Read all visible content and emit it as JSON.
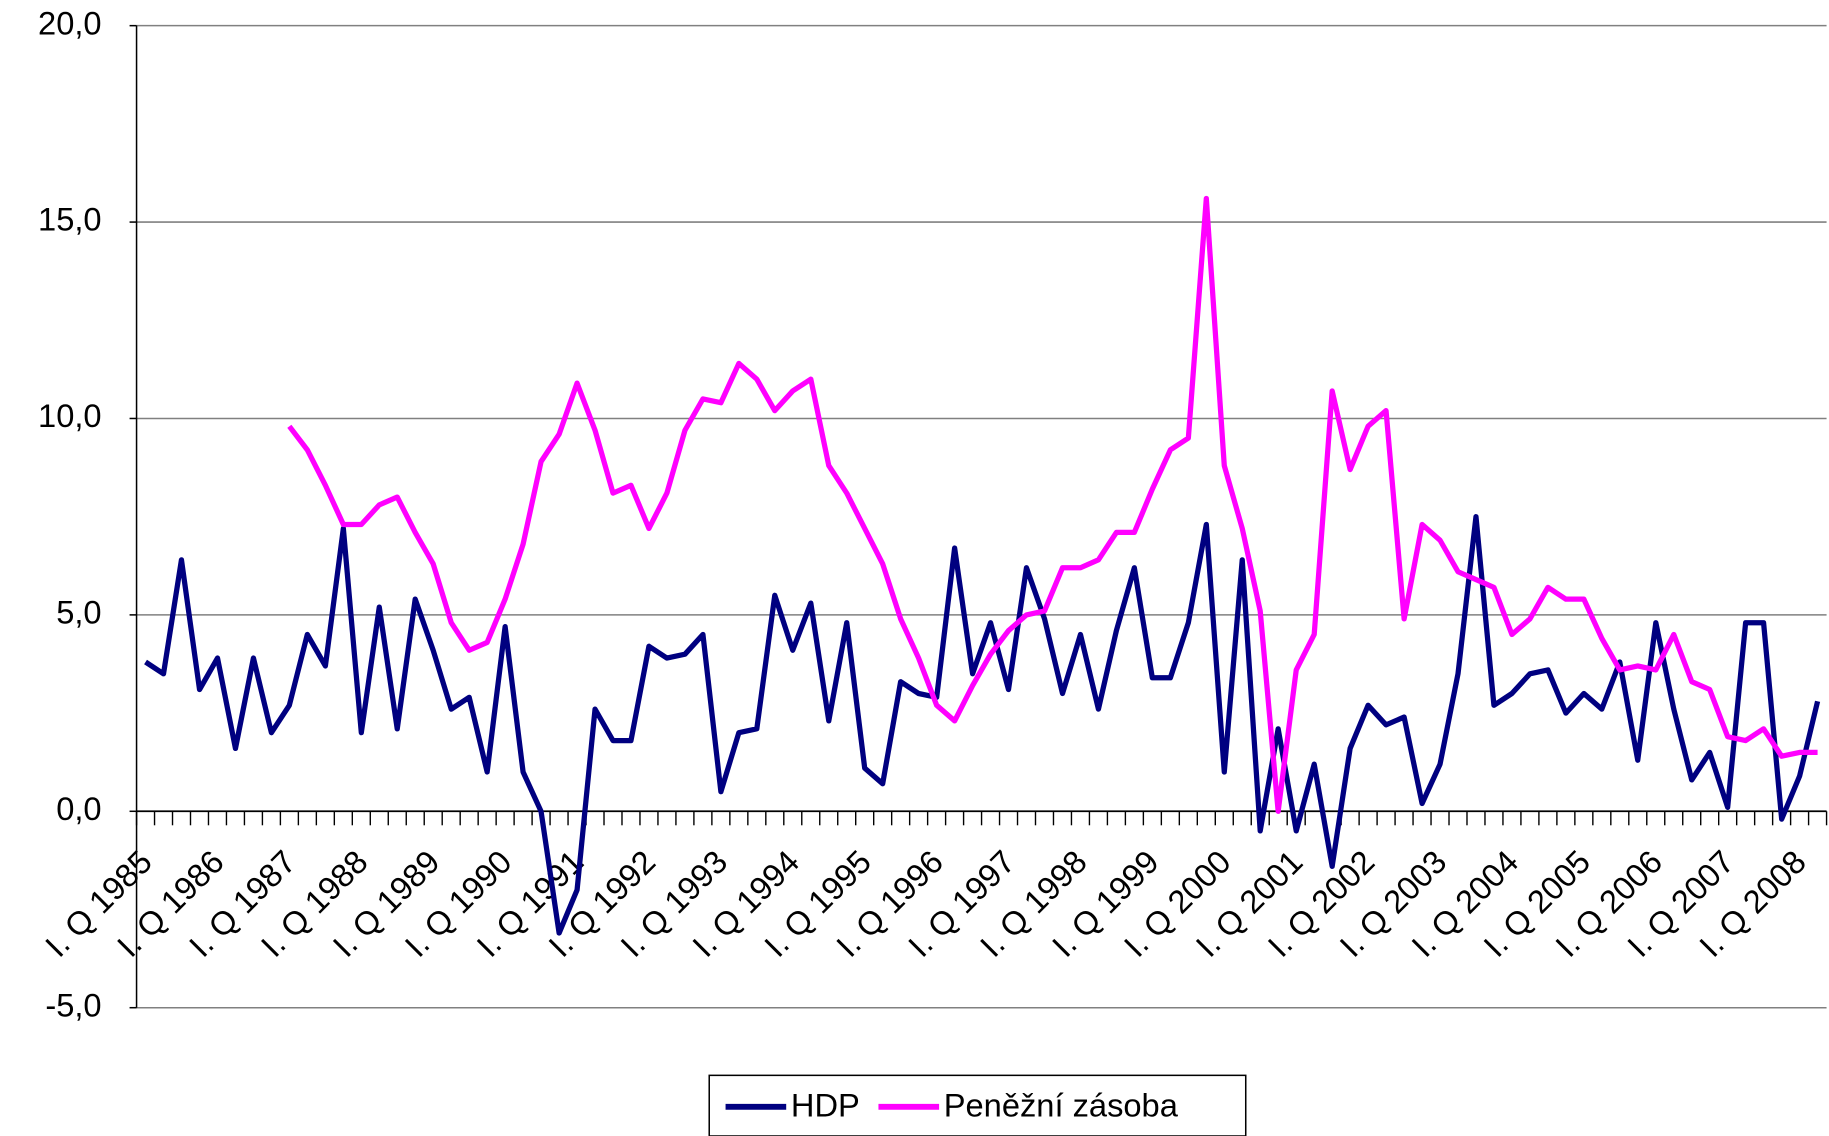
{
  "chart_data": {
    "type": "line",
    "categories": [
      "I. Q 1985",
      null,
      null,
      null,
      "I. Q 1986",
      null,
      null,
      null,
      "I. Q 1987",
      null,
      null,
      null,
      "I. Q 1988",
      null,
      null,
      null,
      "I. Q 1989",
      null,
      null,
      null,
      "I. Q 1990",
      null,
      null,
      null,
      "I. Q 1991",
      null,
      null,
      null,
      "I. Q 1992",
      null,
      null,
      null,
      "I. Q 1993",
      null,
      null,
      null,
      "I. Q 1994",
      null,
      null,
      null,
      "I. Q 1995",
      null,
      null,
      null,
      "I. Q 1996",
      null,
      null,
      null,
      "I. Q 1997",
      null,
      null,
      null,
      "I. Q 1998",
      null,
      null,
      null,
      "I. Q 1999",
      null,
      null,
      null,
      "I. Q 2000",
      null,
      null,
      null,
      "I. Q 2001",
      null,
      null,
      null,
      "I. Q 2002",
      null,
      null,
      null,
      "I. Q 2003",
      null,
      null,
      null,
      "I. Q 2004",
      null,
      null,
      null,
      "I. Q 2005",
      null,
      null,
      null,
      "I. Q 2006",
      null,
      null,
      null,
      "I. Q 2007",
      null,
      null,
      null,
      "I. Q 2008",
      null
    ],
    "series": [
      {
        "name": "HDP",
        "color": "#000080",
        "values": [
          3.8,
          3.5,
          6.4,
          3.1,
          3.9,
          1.6,
          3.9,
          2.0,
          2.7,
          4.5,
          3.7,
          7.2,
          2.0,
          5.2,
          2.1,
          5.4,
          4.1,
          2.6,
          2.9,
          1.0,
          4.7,
          1.0,
          0.0,
          -3.1,
          -2.0,
          2.6,
          1.8,
          1.8,
          4.2,
          3.9,
          4.0,
          4.5,
          0.5,
          2.0,
          2.1,
          5.5,
          4.1,
          5.3,
          2.3,
          4.8,
          1.1,
          0.7,
          3.3,
          3.0,
          2.9,
          6.7,
          3.5,
          4.8,
          3.1,
          6.2,
          4.9,
          3.0,
          4.5,
          2.6,
          4.6,
          6.2,
          3.4,
          3.4,
          4.8,
          7.3,
          1.0,
          6.4,
          -0.5,
          2.1,
          -0.5,
          1.2,
          -1.4,
          1.6,
          2.7,
          2.2,
          2.4,
          0.2,
          1.2,
          3.5,
          7.5,
          2.7,
          3.0,
          3.5,
          3.6,
          2.5,
          3.0,
          2.6,
          3.8,
          1.3,
          4.8,
          2.6,
          0.8,
          1.5,
          0.1,
          4.8,
          4.8,
          -0.2,
          0.9,
          2.8
        ]
      },
      {
        "name": "Peněžní zásoba",
        "color": "#ff00ff",
        "values": [
          null,
          null,
          null,
          null,
          null,
          null,
          null,
          null,
          9.8,
          9.2,
          8.3,
          7.3,
          7.3,
          7.8,
          8.0,
          7.1,
          6.3,
          4.8,
          4.1,
          4.3,
          5.4,
          6.8,
          8.9,
          9.6,
          10.9,
          9.7,
          8.1,
          8.3,
          7.2,
          8.1,
          9.7,
          10.5,
          10.4,
          11.4,
          11.0,
          10.2,
          10.7,
          11.0,
          8.8,
          8.1,
          7.2,
          6.3,
          4.9,
          3.9,
          2.7,
          2.3,
          3.2,
          4.0,
          4.6,
          5.0,
          5.1,
          6.2,
          6.2,
          6.4,
          7.1,
          7.1,
          8.2,
          9.2,
          9.5,
          15.6,
          8.8,
          7.2,
          5.1,
          0.0,
          3.6,
          4.5,
          10.7,
          8.7,
          9.8,
          10.2,
          4.9,
          7.3,
          6.9,
          6.1,
          5.9,
          5.7,
          4.5,
          4.9,
          5.7,
          5.4,
          5.4,
          4.4,
          3.6,
          3.7,
          3.6,
          4.5,
          3.3,
          3.1,
          1.9,
          1.8,
          2.1,
          1.4,
          1.5,
          1.5
        ]
      }
    ],
    "ylim": [
      -5,
      20
    ],
    "yticks": [
      {
        "value": -5,
        "label": "-5,0"
      },
      {
        "value": 0,
        "label": "0,0"
      },
      {
        "value": 5,
        "label": "5,0"
      },
      {
        "value": 10,
        "label": "10,0"
      },
      {
        "value": 15,
        "label": "15,0"
      },
      {
        "value": 20,
        "label": "20,0"
      }
    ],
    "grid": true,
    "legend": "bottom"
  }
}
